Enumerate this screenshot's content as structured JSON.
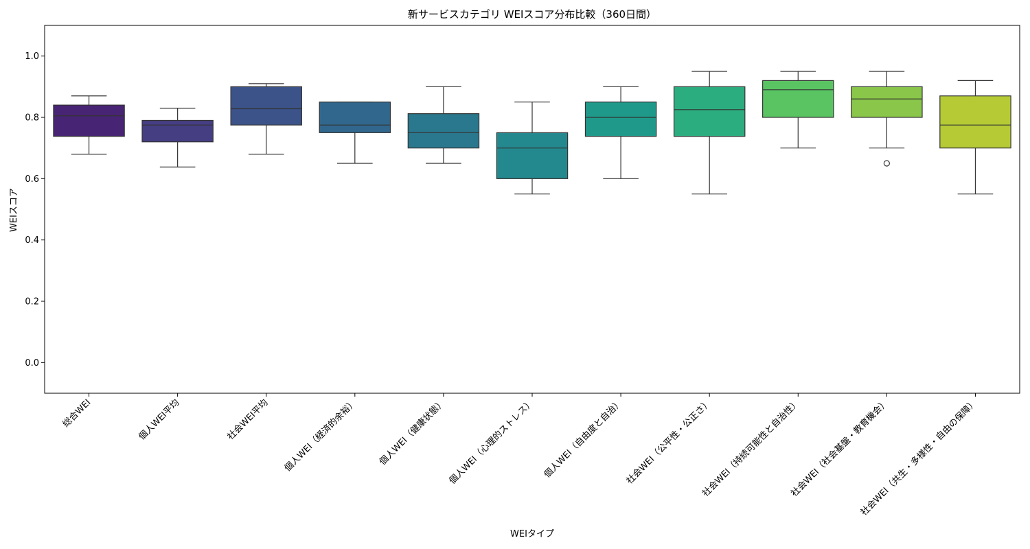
{
  "chart_data": {
    "type": "box",
    "title": "新サービスカテゴリ WEIスコア分布比較（360日間）",
    "xlabel": "WEIタイプ",
    "ylabel": "WEIスコア",
    "ylim": [
      -0.1,
      1.1
    ],
    "yticks": [
      0.0,
      0.2,
      0.4,
      0.6,
      0.8,
      1.0
    ],
    "ytick_labels": [
      "0.0",
      "0.2",
      "0.4",
      "0.6",
      "0.8",
      "1.0"
    ],
    "grid": false,
    "legend": "none",
    "categories": [
      "総合WEI",
      "個人WEI平均",
      "社会WEI平均",
      "個人WEI（経済的余裕）",
      "個人WEI（健康状態）",
      "個人WEI（心理的ストレス）",
      "個人WEI（自由度と自治）",
      "社会WEI（公平性・公正さ）",
      "社会WEI（持続可能性と自治性）",
      "社会WEI（社会基盤・教育機会）",
      "社会WEI（共生・多様性・自由の保障）"
    ],
    "boxes": [
      {
        "whisker_low": 0.68,
        "q1": 0.738,
        "median": 0.805,
        "q3": 0.84,
        "whisker_high": 0.87,
        "outliers": []
      },
      {
        "whisker_low": 0.638,
        "q1": 0.72,
        "median": 0.775,
        "q3": 0.79,
        "whisker_high": 0.83,
        "outliers": []
      },
      {
        "whisker_low": 0.68,
        "q1": 0.775,
        "median": 0.828,
        "q3": 0.9,
        "whisker_high": 0.91,
        "outliers": []
      },
      {
        "whisker_low": 0.65,
        "q1": 0.75,
        "median": 0.775,
        "q3": 0.85,
        "whisker_high": 0.85,
        "outliers": []
      },
      {
        "whisker_low": 0.65,
        "q1": 0.7,
        "median": 0.75,
        "q3": 0.812,
        "whisker_high": 0.9,
        "outliers": []
      },
      {
        "whisker_low": 0.55,
        "q1": 0.6,
        "median": 0.7,
        "q3": 0.75,
        "whisker_high": 0.85,
        "outliers": []
      },
      {
        "whisker_low": 0.6,
        "q1": 0.738,
        "median": 0.8,
        "q3": 0.85,
        "whisker_high": 0.9,
        "outliers": []
      },
      {
        "whisker_low": 0.55,
        "q1": 0.738,
        "median": 0.825,
        "q3": 0.9,
        "whisker_high": 0.95,
        "outliers": []
      },
      {
        "whisker_low": 0.7,
        "q1": 0.8,
        "median": 0.89,
        "q3": 0.92,
        "whisker_high": 0.95,
        "outliers": []
      },
      {
        "whisker_low": 0.7,
        "q1": 0.8,
        "median": 0.86,
        "q3": 0.9,
        "whisker_high": 0.95,
        "outliers": [
          0.65
        ]
      },
      {
        "whisker_low": 0.55,
        "q1": 0.7,
        "median": 0.775,
        "q3": 0.87,
        "whisker_high": 0.92,
        "outliers": []
      }
    ],
    "colors": [
      "#482474",
      "#463e83",
      "#3c538a",
      "#31678d",
      "#2a788e",
      "#23898e",
      "#1f9a8a",
      "#2cad7f",
      "#5ac463",
      "#8ac649",
      "#b5ca35"
    ]
  }
}
